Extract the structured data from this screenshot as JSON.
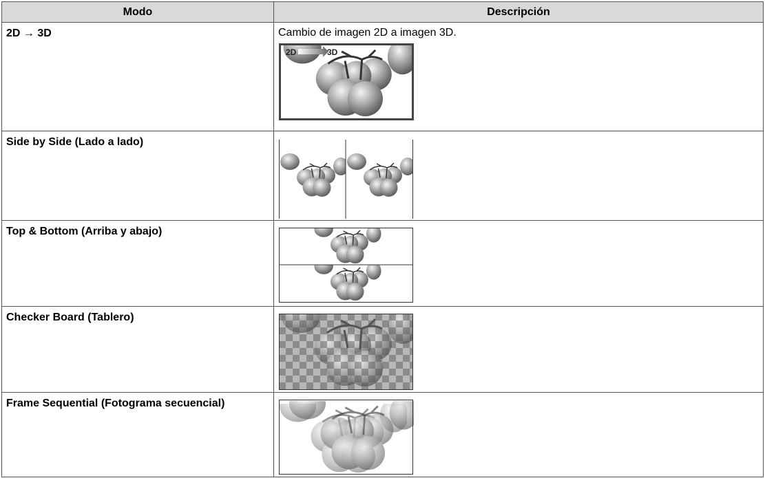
{
  "table": {
    "header": [
      "Modo",
      "Descripción"
    ],
    "rows": [
      {
        "mode": "2D → 3D",
        "description": "Cambio de imagen 2D a imagen 3D.",
        "image_labels": [
          "2D",
          "3D"
        ]
      },
      {
        "mode": "Side by Side (Lado a lado)"
      },
      {
        "mode": "Top & Bottom (Arriba y abajo)"
      },
      {
        "mode": "Checker Board (Tablero)"
      },
      {
        "mode": "Frame Sequential (Fotograma secuencial)"
      }
    ]
  }
}
